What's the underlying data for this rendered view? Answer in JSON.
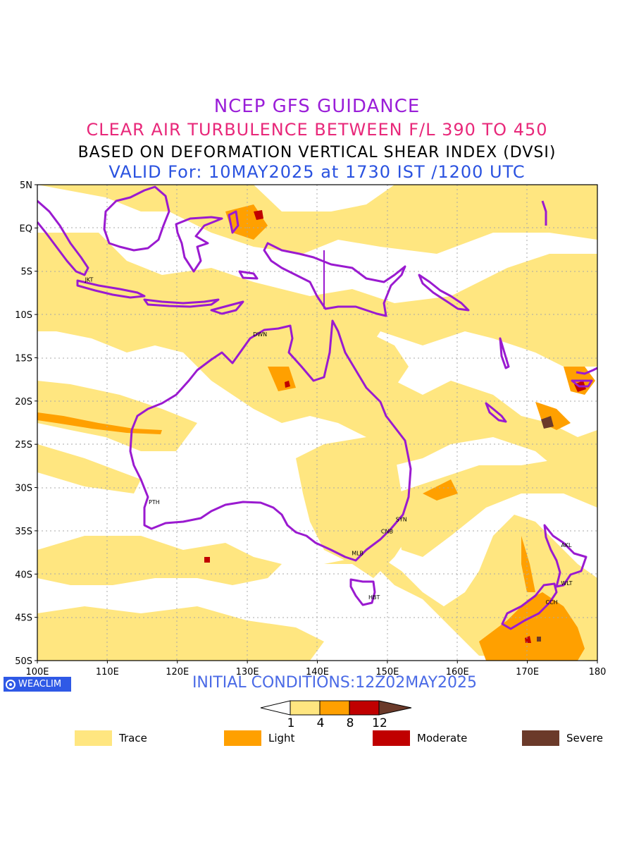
{
  "titles": {
    "line1": "NCEP GFS GUIDANCE",
    "line2": "CLEAR AIR TURBULENCE BETWEEN F/L 390 TO 450",
    "line3": "BASED ON DEFORMATION VERTICAL SHEAR INDEX (DVSI)",
    "line4": "VALID For: 10MAY2025 at 1730 IST /1200 UTC"
  },
  "map": {
    "lat_labels": [
      "5N",
      "EQ",
      "5S",
      "10S",
      "15S",
      "20S",
      "25S",
      "30S",
      "35S",
      "40S",
      "45S",
      "50S"
    ],
    "lon_labels": [
      "100E",
      "110E",
      "120E",
      "130E",
      "140E",
      "150E",
      "160E",
      "170E",
      "180"
    ],
    "cities": [
      {
        "code": "JKT",
        "lon": 106.8,
        "lat": -6.2
      },
      {
        "code": "DWN",
        "lon": 130.8,
        "lat": -12.5
      },
      {
        "code": "PTH",
        "lon": 115.9,
        "lat": -31.9
      },
      {
        "code": "SYN",
        "lon": 151.2,
        "lat": -33.9
      },
      {
        "code": "CNB",
        "lon": 149.1,
        "lat": -35.3
      },
      {
        "code": "MLB",
        "lon": 144.9,
        "lat": -37.8
      },
      {
        "code": "HBT",
        "lon": 147.3,
        "lat": -42.9
      },
      {
        "code": "AKL",
        "lon": 174.8,
        "lat": -36.9
      },
      {
        "code": "WLT",
        "lon": 174.8,
        "lat": -41.3
      },
      {
        "code": "CCH",
        "lon": 172.6,
        "lat": -43.5
      }
    ],
    "colors": {
      "coast": "#9a1ad0",
      "trace": "#ffe680",
      "light": "#ffa000",
      "moderate": "#c00000",
      "severe": "#6b3a2a"
    }
  },
  "branding": {
    "label": "WEACLIM"
  },
  "initial_conditions": "INITIAL CONDITIONS:12Z02MAY2025",
  "colorbar": {
    "ticks": [
      "1",
      "4",
      "8",
      "12"
    ],
    "colors": [
      "#ffffff",
      "#ffe680",
      "#ffa000",
      "#c00000",
      "#6b3a2a"
    ]
  },
  "legend": [
    {
      "label": "Trace",
      "color": "#ffe680"
    },
    {
      "label": "Light",
      "color": "#ffa000"
    },
    {
      "label": "Moderate",
      "color": "#c00000"
    },
    {
      "label": "Severe",
      "color": "#6b3a2a"
    }
  ]
}
